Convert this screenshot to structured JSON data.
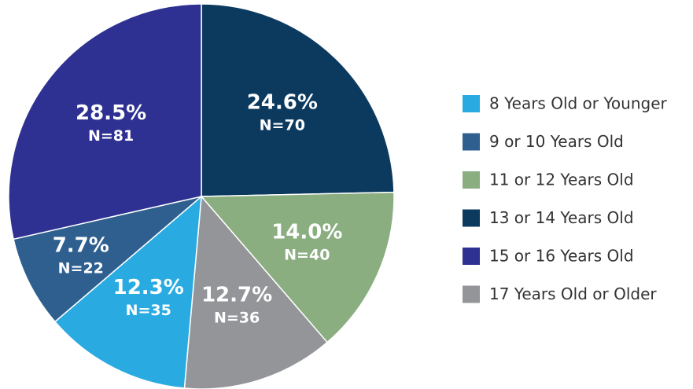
{
  "chart_data": {
    "type": "pie",
    "categories": [
      "8 Years Old or Younger",
      "9 or 10 Years Old",
      "11 or 12 Years Old",
      "13 or 14 Years Old",
      "15 or 16 Years Old",
      "17 Years Old or Older"
    ],
    "values": [
      12.3,
      7.7,
      14.0,
      24.6,
      28.5,
      12.7
    ],
    "value_labels": [
      "12.3%",
      "7.7%",
      "14.0%",
      "24.6%",
      "28.5%",
      "12.7%"
    ],
    "counts": [
      35,
      22,
      40,
      70,
      81,
      36
    ],
    "count_labels": [
      "N=35",
      "N=22",
      "N=40",
      "N=70",
      "N=81",
      "N=36"
    ],
    "colors": [
      "#29abe2",
      "#2e5f8f",
      "#8aae80",
      "#0c3a5f",
      "#2e3192",
      "#939598"
    ],
    "legend": "right"
  }
}
